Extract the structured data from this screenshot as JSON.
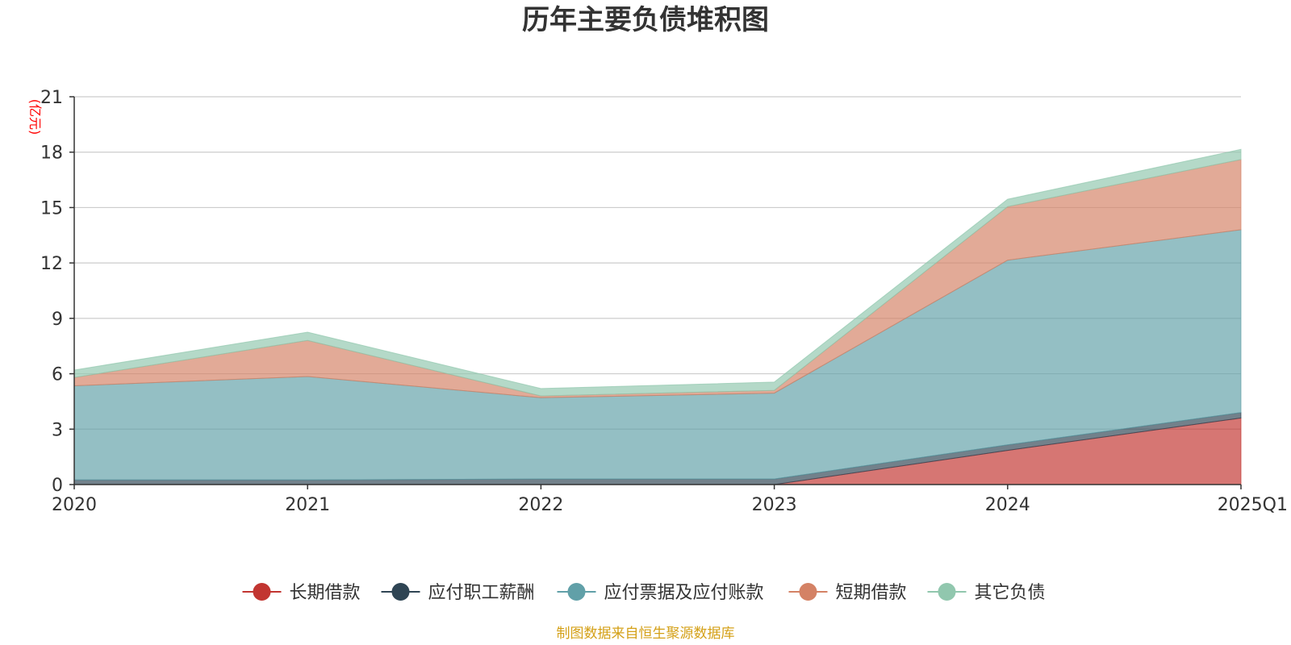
{
  "chart_data": {
    "type": "area",
    "stacked": true,
    "title": "历年主要负债堆积图",
    "y_unit": "(亿元)",
    "categories": [
      "2020",
      "2021",
      "2022",
      "2023",
      "2024",
      "2025Q1"
    ],
    "ylim": [
      0,
      21
    ],
    "yticks": [
      "0",
      "3",
      "6",
      "9",
      "12",
      "15",
      "18",
      "21"
    ],
    "grid": true,
    "legend_position": "bottom",
    "series": [
      {
        "name": "长期借款",
        "color": "#c23531",
        "values": [
          0,
          0,
          0,
          0,
          1.85,
          3.6
        ]
      },
      {
        "name": "应付职工薪酬",
        "color": "#2f4554",
        "values": [
          0.25,
          0.25,
          0.3,
          0.3,
          0.3,
          0.3
        ]
      },
      {
        "name": "应付票据及应付账款",
        "color": "#61a0a8",
        "values": [
          5.1,
          5.6,
          4.4,
          4.65,
          10.0,
          9.9
        ]
      },
      {
        "name": "短期借款",
        "color": "#d48265",
        "values": [
          0.45,
          1.95,
          0.1,
          0.15,
          2.9,
          3.8
        ]
      },
      {
        "name": "其它负债",
        "color": "#91c7ae",
        "values": [
          0.4,
          0.45,
          0.4,
          0.45,
          0.4,
          0.55
        ]
      }
    ]
  },
  "source_note": "制图数据来自恒生聚源数据库",
  "colors": {
    "unit": "#ff0000",
    "source": "#d4a017",
    "grid": "#cccccc",
    "axis": "#333333"
  }
}
